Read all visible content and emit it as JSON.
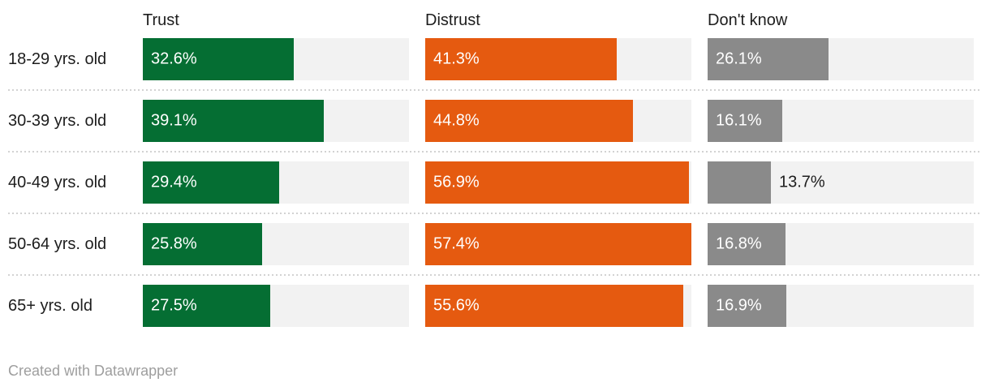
{
  "chart_data": {
    "type": "bar",
    "variant": "split-bars-horizontal",
    "categories": [
      "18-29 yrs. old",
      "30-39 yrs. old",
      "40-49 yrs. old",
      "50-64 yrs. old",
      "65+ yrs. old"
    ],
    "series": [
      {
        "name": "Trust",
        "color": "#056e33",
        "values": [
          32.6,
          39.1,
          29.4,
          25.8,
          27.5
        ]
      },
      {
        "name": "Distrust",
        "color": "#e55a10",
        "values": [
          41.3,
          44.8,
          56.9,
          57.4,
          55.6
        ]
      },
      {
        "name": "Don't know",
        "color": "#8a8a8a",
        "values": [
          26.1,
          16.1,
          13.7,
          16.8,
          16.9
        ]
      }
    ],
    "value_suffix": "%",
    "scale_max": 57.4,
    "track_color": "#f2f2f2",
    "grid": "dotted-row-separators",
    "legend_position": "column-headers",
    "xlabel": "",
    "ylabel": ""
  },
  "colors": {
    "text": "#1d1d1d",
    "value_label_inside": "#ffffff",
    "separator": "#d2d2d2",
    "footer_text": "#9e9e9e",
    "background": "#ffffff"
  },
  "footer": {
    "credit": "Created with Datawrapper"
  }
}
